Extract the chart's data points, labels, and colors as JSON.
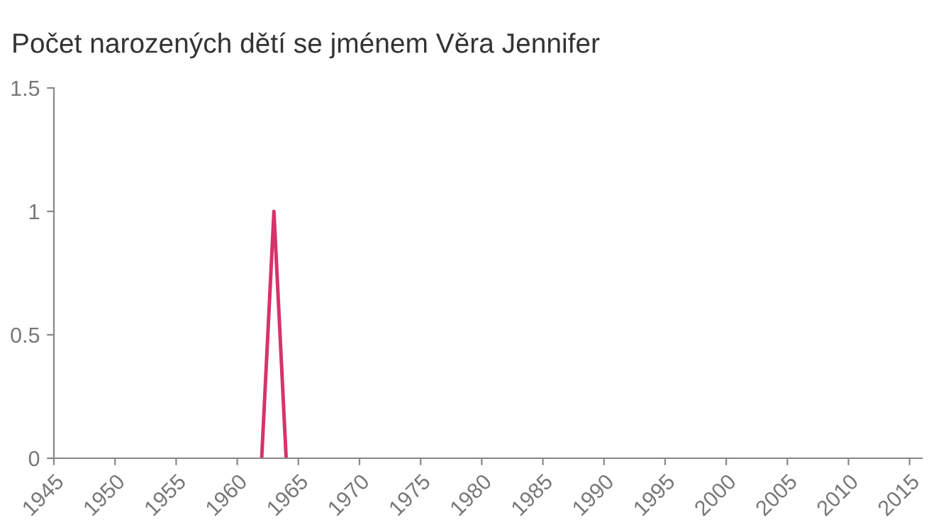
{
  "chart_data": {
    "type": "line",
    "title": "Počet narozených dětí se jménem Věra Jennifer",
    "x": [
      1962,
      1963,
      1964
    ],
    "series": [
      {
        "color": "#d6336c",
        "values": [
          0,
          1,
          0
        ]
      }
    ],
    "xlim": [
      1945,
      2016
    ],
    "xticks": [
      1945,
      1950,
      1955,
      1960,
      1965,
      1970,
      1975,
      1980,
      1985,
      1990,
      1995,
      2000,
      2005,
      2010,
      2015
    ],
    "ylim": [
      0,
      1.5
    ],
    "yticks": [
      0,
      0.5,
      1,
      1.5
    ],
    "grid": false,
    "legend": false,
    "marker": "none",
    "line_style": "solid"
  }
}
